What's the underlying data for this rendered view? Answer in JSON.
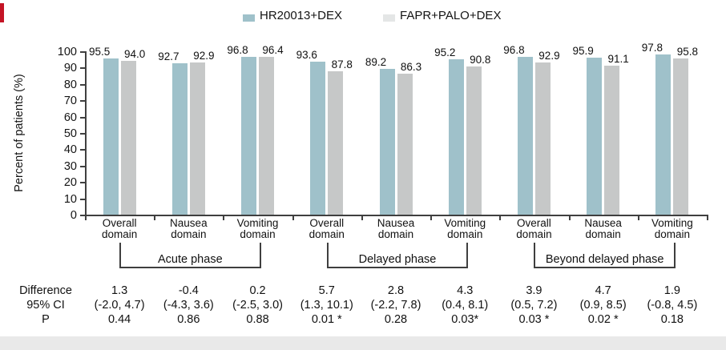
{
  "chart_data": {
    "type": "bar",
    "title": "",
    "ylabel": "Percent of patients (%)",
    "ylim": [
      0,
      100
    ],
    "ytick_step": 10,
    "grid": false,
    "legend_position": "top",
    "series": [
      {
        "name": "HR20013+DEX",
        "color": "#9fc1ca",
        "values": [
          95.5,
          92.7,
          96.8,
          93.6,
          89.2,
          95.2,
          96.8,
          95.9,
          97.8
        ],
        "value_labels": [
          "95.5",
          "92.7",
          "96.8",
          "93.6",
          "89.2",
          "95.2",
          "96.8",
          "95.9",
          "97.8"
        ]
      },
      {
        "name": "FAPR+PALO+DEX",
        "color": "#c6c8c8",
        "legend_swatch_color": "#e4e6e6",
        "values": [
          94.0,
          92.9,
          96.4,
          87.8,
          86.3,
          90.8,
          92.9,
          91.1,
          95.8
        ],
        "value_labels": [
          "94.0",
          "92.9",
          "96.4",
          "87.8",
          "86.3",
          "90.8",
          "92.9",
          "91.1",
          "95.8"
        ]
      }
    ],
    "categories": [
      [
        "Overall",
        "domain"
      ],
      [
        "Nausea",
        "domain"
      ],
      [
        "Vomiting",
        "domain"
      ],
      [
        "Overall",
        "domain"
      ],
      [
        "Nausea",
        "domain"
      ],
      [
        "Vomiting",
        "domain"
      ],
      [
        "Overall",
        "domain"
      ],
      [
        "Nausea",
        "domain"
      ],
      [
        "Vomiting",
        "domain"
      ]
    ],
    "phase_brackets": [
      {
        "label": "Acute phase",
        "start": 0,
        "end": 2
      },
      {
        "label": "Delayed phase",
        "start": 3,
        "end": 5
      },
      {
        "label": "Beyond delayed phase",
        "start": 6,
        "end": 8
      }
    ],
    "stats_table": {
      "row_labels": [
        "Difference",
        "95% CI",
        "P"
      ],
      "difference": [
        "1.3",
        "-0.4",
        "0.2",
        "5.7",
        "2.8",
        "4.3",
        "3.9",
        "4.7",
        "1.9"
      ],
      "ci_95": [
        "(-2.0, 4.7)",
        "(-4.3, 3.6)",
        "(-2.5, 3.0)",
        "(1.3, 10.1)",
        "(-2.2, 7.8)",
        "(0.4, 8.1)",
        "(0.5, 7.2)",
        "(0.9, 8.5)",
        "(-0.8, 4.5)"
      ],
      "p": [
        "0.44",
        "0.86",
        "0.88",
        "0.01 *",
        "0.28",
        "0.03*",
        "0.03 *",
        "0.02 *",
        "0.18"
      ]
    }
  },
  "decorations": {
    "red_mark_color": "#c41425",
    "bottom_band_color": "#e9e9e9",
    "axis_color": "#3f3f3f",
    "text_color": "#141414"
  }
}
